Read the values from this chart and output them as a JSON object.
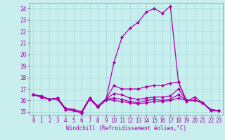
{
  "xlabel": "Windchill (Refroidissement éolien,°C)",
  "bg_color": "#c8eeee",
  "line_color": "#aa00aa",
  "grid_color": "#aadddd",
  "ylim": [
    14.75,
    24.5
  ],
  "xlim": [
    -0.5,
    23.5
  ],
  "yticks": [
    15,
    16,
    17,
    18,
    19,
    20,
    21,
    22,
    23,
    24
  ],
  "xticks": [
    0,
    1,
    2,
    3,
    4,
    5,
    6,
    7,
    8,
    9,
    10,
    11,
    12,
    13,
    14,
    15,
    16,
    17,
    18,
    19,
    20,
    21,
    22,
    23
  ],
  "lines": [
    [
      16.5,
      16.4,
      16.1,
      16.1,
      15.2,
      15.1,
      14.9,
      16.1,
      15.4,
      16.0,
      19.3,
      21.5,
      22.3,
      22.8,
      23.7,
      24.0,
      23.6,
      24.2,
      17.6,
      15.9,
      16.3,
      15.8,
      15.1,
      15.1
    ],
    [
      16.5,
      16.3,
      16.1,
      16.2,
      15.3,
      15.2,
      15.0,
      16.2,
      15.5,
      16.1,
      17.3,
      17.0,
      17.0,
      17.0,
      17.2,
      17.3,
      17.3,
      17.5,
      17.6,
      16.0,
      16.0,
      15.8,
      15.2,
      15.1
    ],
    [
      16.5,
      16.3,
      16.1,
      16.2,
      15.3,
      15.2,
      15.0,
      16.2,
      15.5,
      16.1,
      16.6,
      16.5,
      16.2,
      16.1,
      16.2,
      16.3,
      16.3,
      16.4,
      17.0,
      16.0,
      16.0,
      15.8,
      15.2,
      15.1
    ],
    [
      16.5,
      16.3,
      16.1,
      16.2,
      15.3,
      15.2,
      15.0,
      16.2,
      15.5,
      16.1,
      16.2,
      16.1,
      15.9,
      15.8,
      16.0,
      16.1,
      16.0,
      16.1,
      16.5,
      16.0,
      16.0,
      15.8,
      15.2,
      15.1
    ],
    [
      16.5,
      16.3,
      16.1,
      16.2,
      15.3,
      15.2,
      15.0,
      16.2,
      15.5,
      16.1,
      16.0,
      15.9,
      15.8,
      15.7,
      15.8,
      15.9,
      15.9,
      16.0,
      16.2,
      16.0,
      16.0,
      15.8,
      15.2,
      15.1
    ]
  ],
  "tick_fontsize": 5.5,
  "label_fontsize": 5.5
}
